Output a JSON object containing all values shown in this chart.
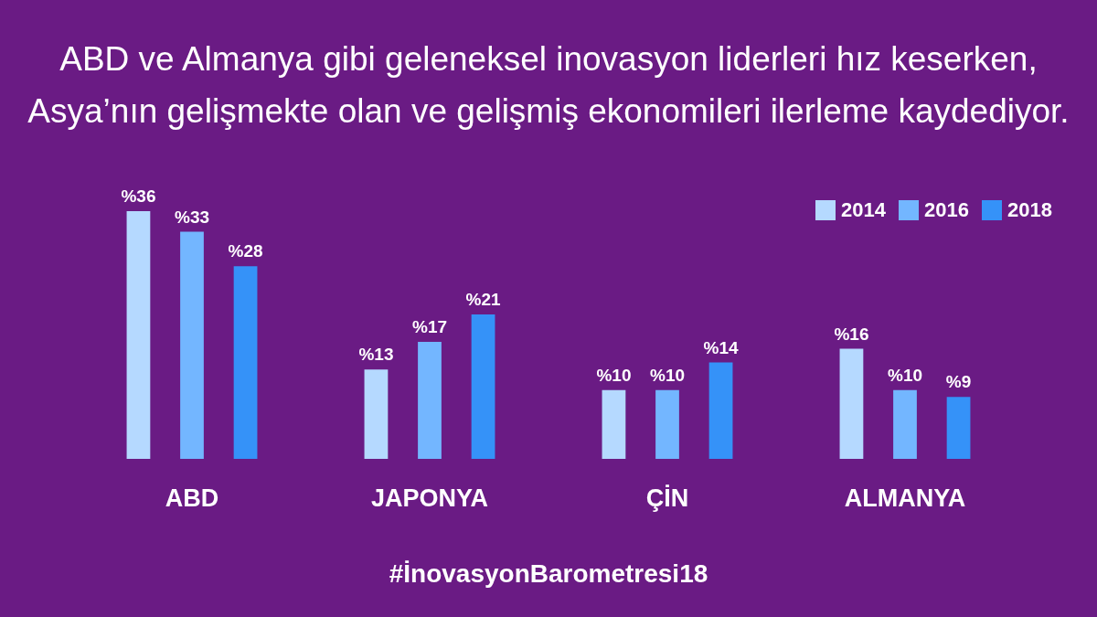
{
  "chart_data": {
    "type": "bar",
    "title": "ABD ve Almanya gibi geleneksel inovasyon liderleri hız keserken, Asya’nın gelişmekte olan ve gelişmiş ekonomileri ilerleme kaydediyor.",
    "categories": [
      "ABD",
      "JAPONYA",
      "ÇİN",
      "ALMANYA"
    ],
    "series": [
      {
        "name": "2014",
        "color": "#b5d9ff",
        "values": [
          36,
          13,
          10,
          16
        ],
        "value_labels": [
          "%36",
          "%13",
          "%10",
          "%16"
        ]
      },
      {
        "name": "2016",
        "color": "#73b6ff",
        "values": [
          33,
          17,
          10,
          10
        ],
        "value_labels": [
          "%33",
          "%17",
          "%10",
          "%10"
        ]
      },
      {
        "name": "2018",
        "color": "#3592f8",
        "values": [
          28,
          21,
          14,
          9
        ],
        "value_labels": [
          "%28",
          "%21",
          "%14",
          "%9"
        ]
      }
    ],
    "legend": "top right",
    "tick_labels": "x",
    "annotations": [
      "#İnovasyonBarometresi18"
    ]
  }
}
